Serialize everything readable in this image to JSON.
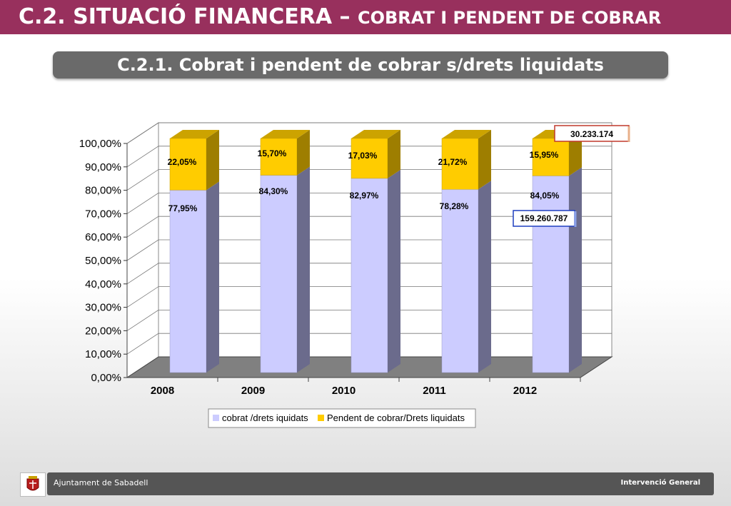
{
  "header": {
    "title_main": "C.2. SITUACIÓ FINANCERA –",
    "title_sub": "COBRAT I PENDENT DE COBRAR"
  },
  "subtitle": "C.2.1. Cobrat i pendent de cobrar s/drets liquidats",
  "colors": {
    "header": "#98305d",
    "cobrat": "#ccccff",
    "pendent": "#ffcc00"
  },
  "chart_data": {
    "type": "bar",
    "stacked": true,
    "three_d": true,
    "categories": [
      "2008",
      "2009",
      "2010",
      "2011",
      "2012"
    ],
    "series": [
      {
        "name": "cobrat /drets iquidats",
        "values": [
          77.95,
          84.3,
          82.97,
          78.28,
          84.05
        ],
        "labels": [
          "77,95%",
          "84,30%",
          "82,97%",
          "78,28%",
          "84,05%"
        ]
      },
      {
        "name": "Pendent de cobrar/Drets liquidats",
        "values": [
          22.05,
          15.7,
          17.03,
          21.72,
          15.95
        ],
        "labels": [
          "22,05%",
          "15,70%",
          "17,03%",
          "21,72%",
          "15,95%"
        ]
      }
    ],
    "ylim": [
      0,
      100
    ],
    "yticks": [
      "0,00%",
      "10,00%",
      "20,00%",
      "30,00%",
      "40,00%",
      "50,00%",
      "60,00%",
      "70,00%",
      "80,00%",
      "90,00%",
      "100,00%"
    ],
    "grid": true,
    "legend": "bottom",
    "annotations": [
      "30.233.174",
      "159.260.787"
    ]
  },
  "footer": {
    "org": "Ajuntament de Sabadell",
    "dept": "Intervenció General"
  }
}
